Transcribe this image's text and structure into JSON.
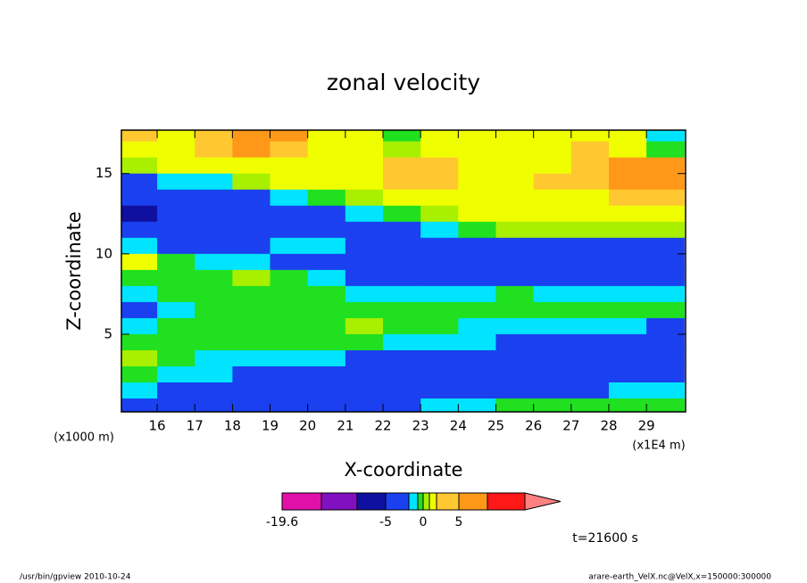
{
  "chart_data": {
    "type": "contour",
    "title": "zonal velocity",
    "xlabel": "X-coordinate",
    "ylabel": "Z-coordinate",
    "x_unit": "(x1E4 m)",
    "y_unit": "(x1000 m)",
    "xlim": [
      15.05,
      30.04
    ],
    "ylim": [
      0.17,
      17.7
    ],
    "xticks": [
      16,
      17,
      18,
      19,
      20,
      21,
      22,
      23,
      24,
      25,
      26,
      27,
      28,
      29
    ],
    "yticks": [
      5,
      10,
      15
    ],
    "x": [
      15.5,
      16.5,
      17.5,
      18.5,
      19.5,
      20.5,
      21.5,
      22.5,
      23.5,
      24.5,
      25.5,
      26.5,
      27.5,
      28.5,
      29.5
    ],
    "y": [
      17.5,
      16.5,
      15.5,
      14.5,
      13.5,
      12.5,
      11.5,
      10.5,
      9.5,
      8.5,
      7.5,
      6.5,
      5.5,
      4.5,
      3.5,
      2.5,
      1.5,
      0.5
    ],
    "z": [
      [
        3,
        1.5,
        3,
        7,
        7,
        1.5,
        1.5,
        -0.5,
        1.5,
        1.5,
        1.5,
        1.5,
        1.5,
        1.5,
        -1.5
      ],
      [
        1.5,
        1.5,
        3,
        7,
        3,
        1.5,
        1.5,
        0.5,
        1.5,
        1.5,
        1.5,
        1.5,
        3,
        1.5,
        -0.5
      ],
      [
        0.5,
        1.5,
        1.5,
        1.5,
        1.5,
        1.5,
        1.5,
        3,
        3,
        1.5,
        1.5,
        1.5,
        3,
        7,
        7
      ],
      [
        -3,
        -1.5,
        -1.5,
        0.5,
        1.5,
        1.5,
        1.5,
        3,
        3,
        1.5,
        1.5,
        3,
        3,
        7,
        7
      ],
      [
        -3,
        -3,
        -3,
        -3,
        -1.5,
        -0.5,
        0.5,
        1.5,
        1.5,
        1.5,
        1.5,
        1.5,
        1.5,
        3,
        3
      ],
      [
        -7,
        -3,
        -3,
        -3,
        -3,
        -3,
        -1.5,
        -0.5,
        0.5,
        1.5,
        1.5,
        1.5,
        1.5,
        1.5,
        1.5
      ],
      [
        -3,
        -3,
        -3,
        -3,
        -3,
        -3,
        -3,
        -3,
        -1.5,
        -0.5,
        0.5,
        0.5,
        0.5,
        0.5,
        0.5
      ],
      [
        -1.5,
        -3,
        -3,
        -3,
        -1.5,
        -1.5,
        -3,
        -3,
        -3,
        -3,
        -3,
        -3,
        -3,
        -3,
        -3
      ],
      [
        1.5,
        -0.5,
        -1.5,
        -1.5,
        -3,
        -3,
        -3,
        -3,
        -3,
        -3,
        -3,
        -3,
        -3,
        -3,
        -3
      ],
      [
        -0.5,
        -0.5,
        -0.5,
        0.5,
        -0.5,
        -1.5,
        -3,
        -3,
        -3,
        -3,
        -3,
        -3,
        -3,
        -3,
        -3
      ],
      [
        -1.5,
        -0.5,
        -0.5,
        -0.5,
        -0.5,
        -0.5,
        -1.5,
        -1.5,
        -1.5,
        -1.5,
        -0.5,
        -1.5,
        -1.5,
        -1.5,
        -1.5
      ],
      [
        -3,
        -1.5,
        -0.5,
        -0.5,
        -0.5,
        -0.5,
        -0.5,
        -0.5,
        -0.5,
        -0.5,
        -0.5,
        -0.5,
        -0.5,
        -0.5,
        -0.5
      ],
      [
        -1.5,
        -0.5,
        -0.5,
        -0.5,
        -0.5,
        -0.5,
        0.5,
        -0.5,
        -0.5,
        -1.5,
        -1.5,
        -1.5,
        -1.5,
        -1.5,
        -3
      ],
      [
        -0.5,
        -0.5,
        -0.5,
        -0.5,
        -0.5,
        -0.5,
        -0.5,
        -1.5,
        -1.5,
        -1.5,
        -3,
        -3,
        -3,
        -3,
        -3
      ],
      [
        0.5,
        -0.5,
        -1.5,
        -1.5,
        -1.5,
        -1.5,
        -3,
        -3,
        -3,
        -3,
        -3,
        -3,
        -3,
        -3,
        -3
      ],
      [
        -0.5,
        -1.5,
        -1.5,
        -3,
        -3,
        -3,
        -3,
        -3,
        -3,
        -3,
        -3,
        -3,
        -3,
        -3,
        -3
      ],
      [
        -1.5,
        -3,
        -3,
        -3,
        -3,
        -3,
        -3,
        -3,
        -3,
        -3,
        -3,
        -3,
        -3,
        -1.5,
        -1.5
      ],
      [
        -3,
        -3,
        -3,
        -3,
        -3,
        -3,
        -3,
        -3,
        -1.5,
        -1.5,
        -0.5,
        -0.5,
        -0.5,
        -0.5,
        -0.5
      ]
    ],
    "levels": [
      -19.6,
      -15,
      -10,
      -5,
      -2,
      -1,
      0,
      1,
      2,
      5,
      10,
      15
    ],
    "colors": [
      "#e010a8",
      "#8010c0",
      "#1010a0",
      "#1a40f0",
      "#00e4ff",
      "#20e020",
      "#a8f000",
      "#f0ff00",
      "#ffc830",
      "#ff9818",
      "#ff1818"
    ],
    "over_color": "#ff8080",
    "cbar_ticks": [
      -19.6,
      -5,
      0,
      5
    ],
    "time_label": "t=21600 s",
    "footer_left": "/usr/bin/gpview  2010-10-24",
    "footer_right": "arare-earth_VelX.nc@VelX,x=150000:300000"
  }
}
